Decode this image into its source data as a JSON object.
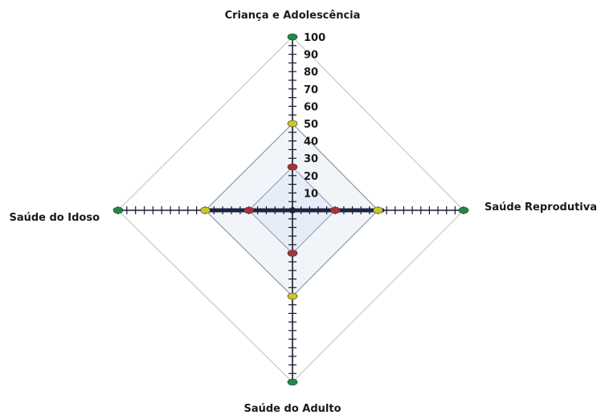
{
  "chart_data": {
    "type": "radar",
    "axes": [
      "Criança e Adolescência",
      "Saúde Reprodutiva",
      "Saúde do Adulto",
      "Saúde do Idoso"
    ],
    "range": [
      0,
      100
    ],
    "tick_labels": [
      "10",
      "20",
      "30",
      "40",
      "50",
      "60",
      "70",
      "80",
      "90",
      "100"
    ],
    "grid": false,
    "legend": "none",
    "series": [
      {
        "values": [
          100,
          100,
          100,
          100
        ],
        "color": "#1e8a4a",
        "line_color": "#b7cfc4",
        "fill": "none"
      },
      {
        "values": [
          50,
          50,
          50,
          50
        ],
        "color": "#c8c82a",
        "line_color": "#8c96a8",
        "fill": "#e6ecf6"
      },
      {
        "values": [
          25,
          25,
          25,
          25
        ],
        "color": "#a8323a",
        "line_color": "#9aa4b6",
        "fill": "#dde6f5"
      }
    ],
    "accent": {
      "axis": "#1a1a2e",
      "center_bar": "#1c2440"
    }
  }
}
